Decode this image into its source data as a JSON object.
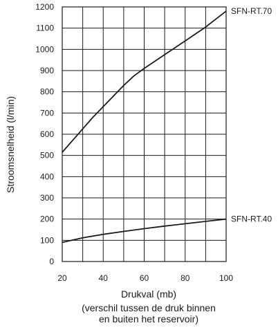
{
  "chart_data": {
    "type": "line",
    "title": "",
    "xlabel": "Drukval (mb)",
    "xlabel_note": [
      "(verschil tussen de druk binnen",
      "en buiten het reservoir)"
    ],
    "ylabel": "Stroomsnelheid (l/min)",
    "xlim": [
      20,
      100
    ],
    "ylim": [
      0,
      1200
    ],
    "xticks": [
      20,
      40,
      60,
      80,
      100
    ],
    "yticks": [
      0,
      100,
      200,
      300,
      400,
      500,
      600,
      700,
      800,
      900,
      1000,
      1100,
      1200
    ],
    "x_minor_grid": [
      30,
      50,
      70,
      90
    ],
    "grid": true,
    "legend": "inline labels at right end of lines",
    "series": [
      {
        "name": "SFN-RT.70",
        "x": [
          20,
          25,
          30,
          35,
          40,
          45,
          50,
          55,
          60,
          70,
          80,
          90,
          100
        ],
        "y": [
          515,
          570,
          625,
          680,
          730,
          780,
          830,
          875,
          910,
          975,
          1040,
          1105,
          1180
        ]
      },
      {
        "name": "SFN-RT.40",
        "x": [
          20,
          30,
          40,
          50,
          60,
          70,
          80,
          90,
          100
        ],
        "y": [
          90,
          112,
          128,
          142,
          155,
          167,
          178,
          189,
          200
        ]
      }
    ]
  },
  "colors": {
    "line": "#1a1a1a",
    "grid": "#1a1a1a",
    "background": "#ffffff"
  }
}
